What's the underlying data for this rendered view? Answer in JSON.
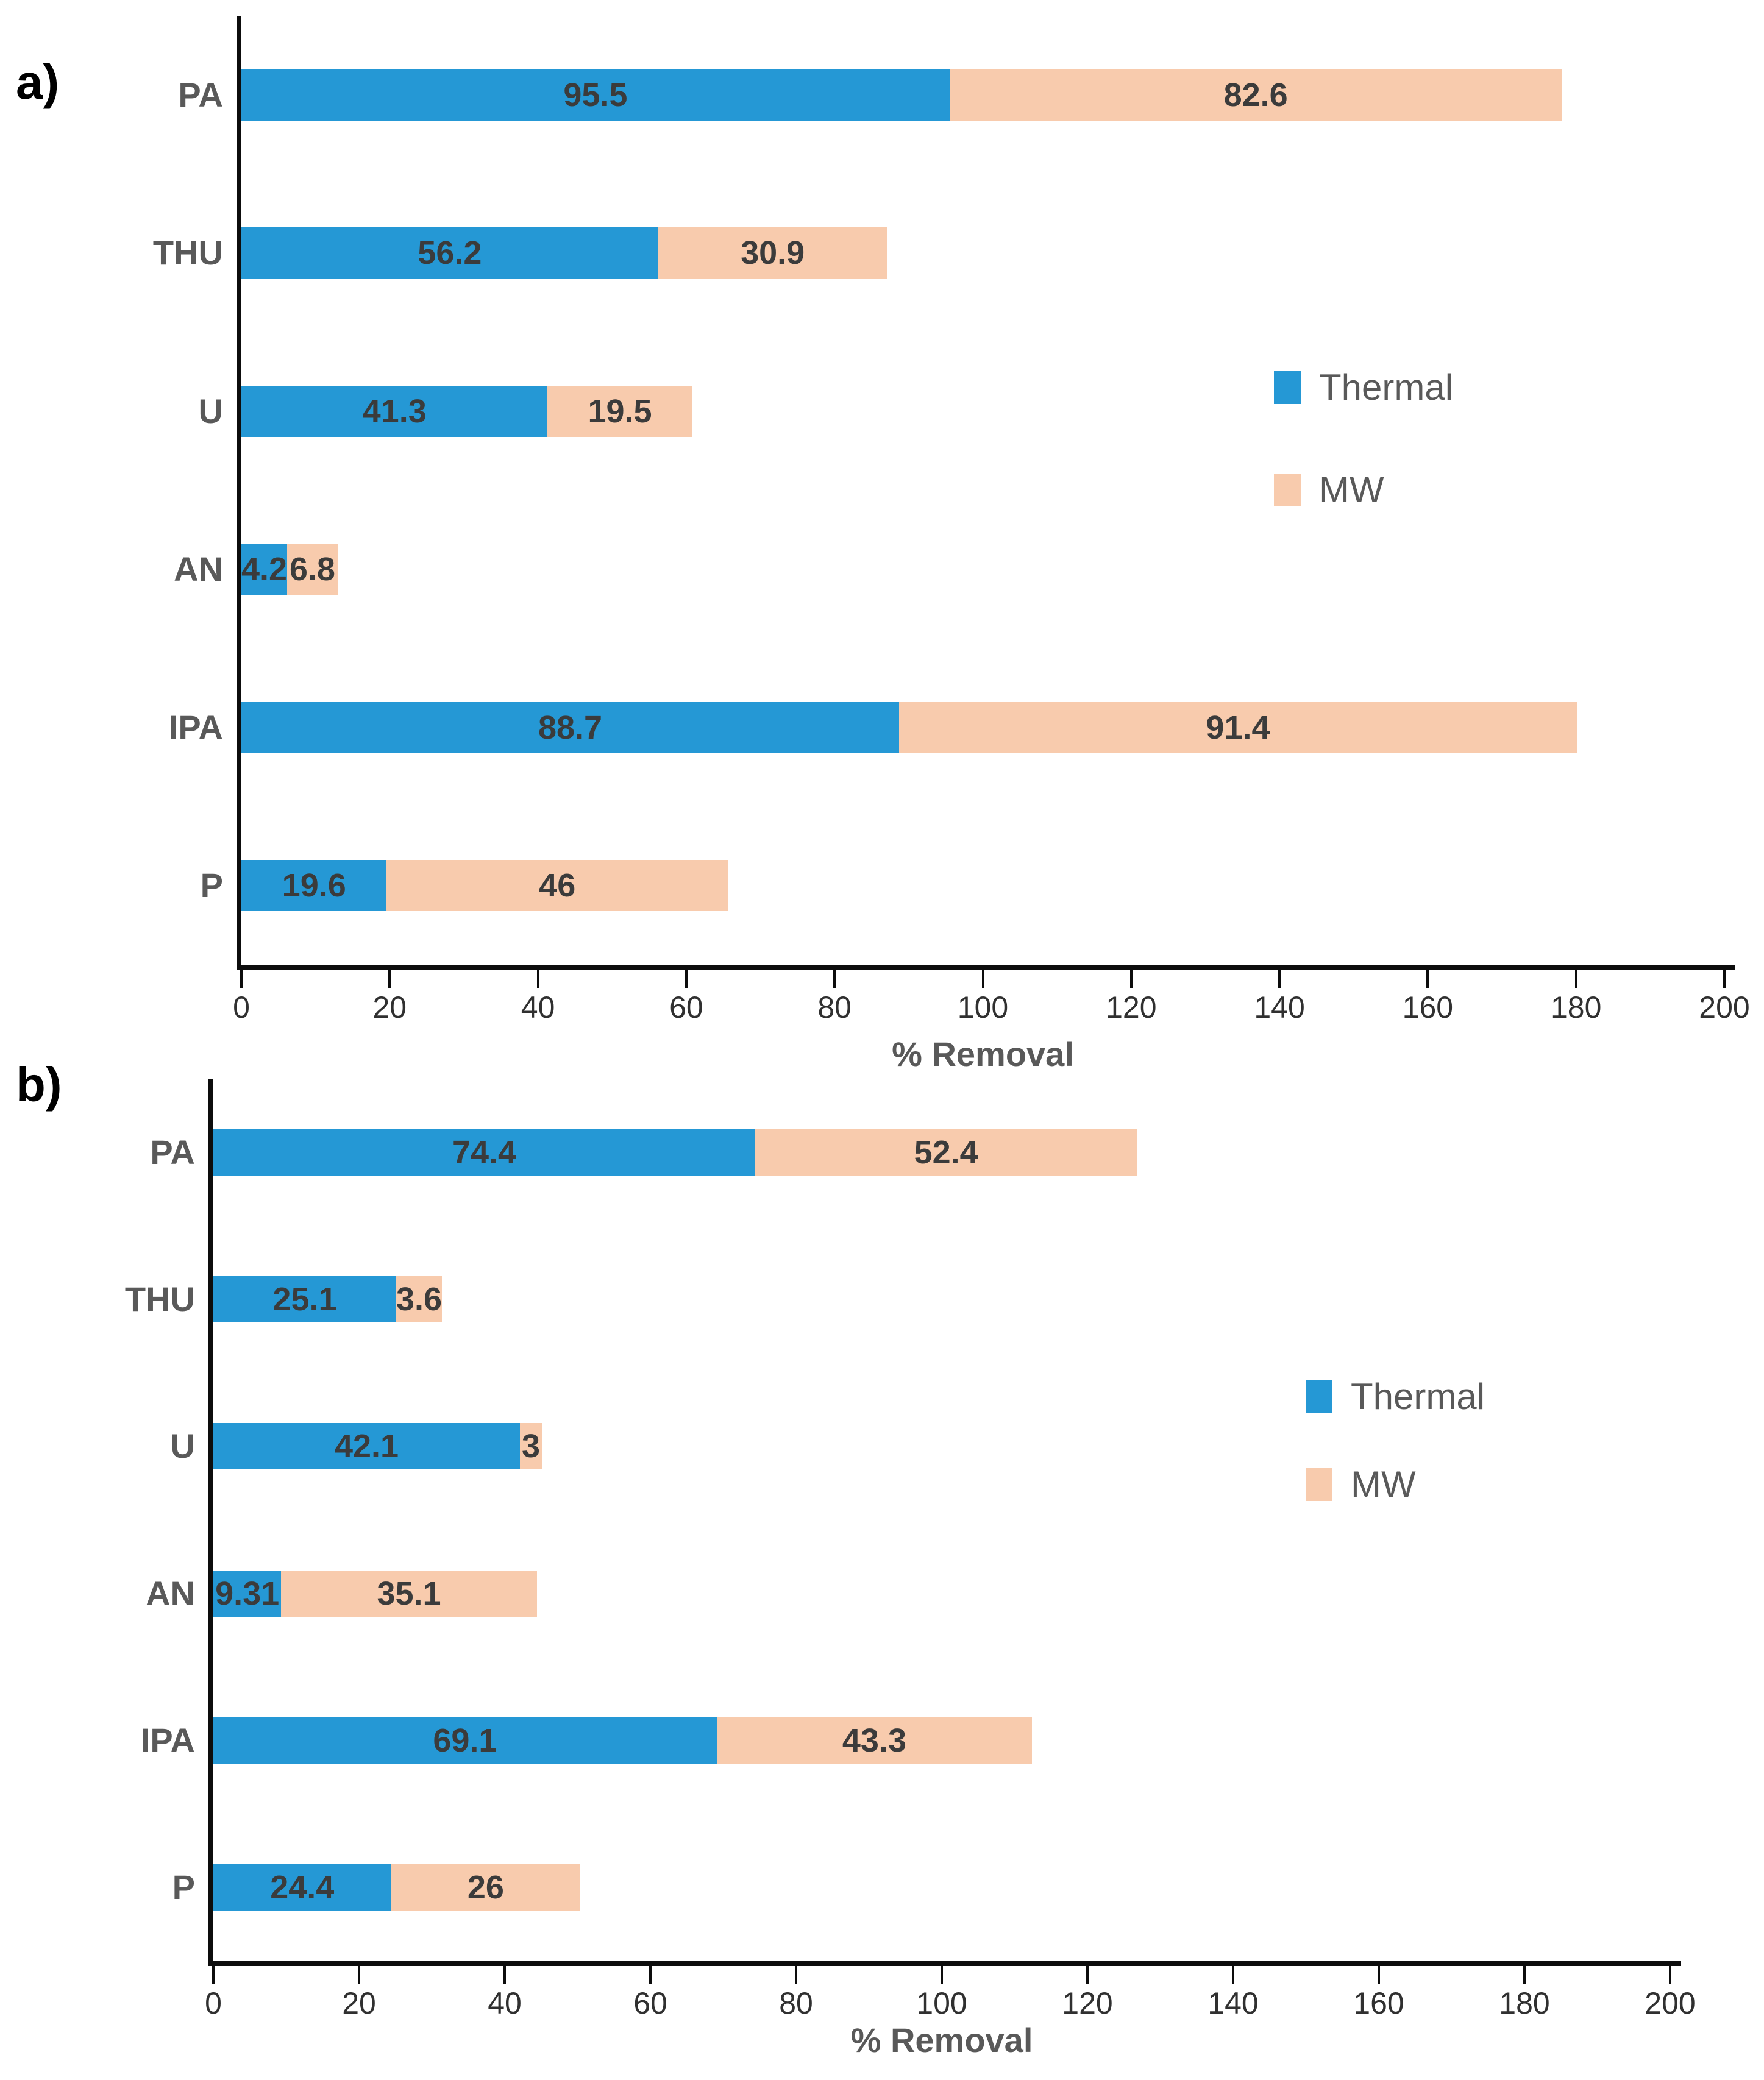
{
  "colors": {
    "thermal": "#2598d5",
    "mw": "#f8cbad",
    "axis": "#0d0d0d",
    "bar_label": "#3b3b3b",
    "category_label": "#595959",
    "tick_label": "#303030",
    "axis_title": "#595959",
    "legend_text": "#595959",
    "panel_label": "#000000",
    "background": "#ffffff"
  },
  "chart_data": [
    {
      "type": "bar",
      "orientation": "horizontal",
      "stacked": true,
      "panel_label": "a)",
      "xlabel": "% Removal",
      "xlim": [
        0,
        200
      ],
      "x_ticks": [
        "0",
        "20",
        "40",
        "60",
        "80",
        "100",
        "120",
        "140",
        "160",
        "180",
        "200"
      ],
      "grid": false,
      "legend_position": "right-center",
      "categories": [
        "PA",
        "THU",
        "U",
        "AN",
        "IPA",
        "P"
      ],
      "series": [
        {
          "name": "Thermal",
          "values": [
            95.5,
            56.2,
            41.3,
            4.2,
            88.7,
            19.6
          ],
          "labels": [
            "95.5",
            "56.2",
            "41.3",
            "4.2",
            "88.7",
            "19.6"
          ]
        },
        {
          "name": "MW",
          "values": [
            82.6,
            30.9,
            19.5,
            6.8,
            91.4,
            46
          ],
          "labels": [
            "82.6",
            "30.9",
            "19.5",
            "6.8",
            "91.4",
            "46"
          ]
        }
      ]
    },
    {
      "type": "bar",
      "orientation": "horizontal",
      "stacked": true,
      "panel_label": "b)",
      "xlabel": "% Removal",
      "xlim": [
        0,
        200
      ],
      "x_ticks": [
        "0",
        "20",
        "40",
        "60",
        "80",
        "100",
        "120",
        "140",
        "160",
        "180",
        "200"
      ],
      "grid": false,
      "legend_position": "right-center",
      "categories": [
        "PA",
        "THU",
        "U",
        "AN",
        "IPA",
        "P"
      ],
      "series": [
        {
          "name": "Thermal",
          "values": [
            74.4,
            25.1,
            42.1,
            9.31,
            69.1,
            24.4
          ],
          "labels": [
            "74.4",
            "25.1",
            "42.1",
            "9.31",
            "69.1",
            "24.4"
          ]
        },
        {
          "name": "MW",
          "values": [
            52.4,
            3.6,
            3,
            35.1,
            43.3,
            26
          ],
          "labels": [
            "52.4",
            "3.6",
            "3",
            "35.1",
            "43.3",
            "26"
          ]
        }
      ]
    }
  ]
}
